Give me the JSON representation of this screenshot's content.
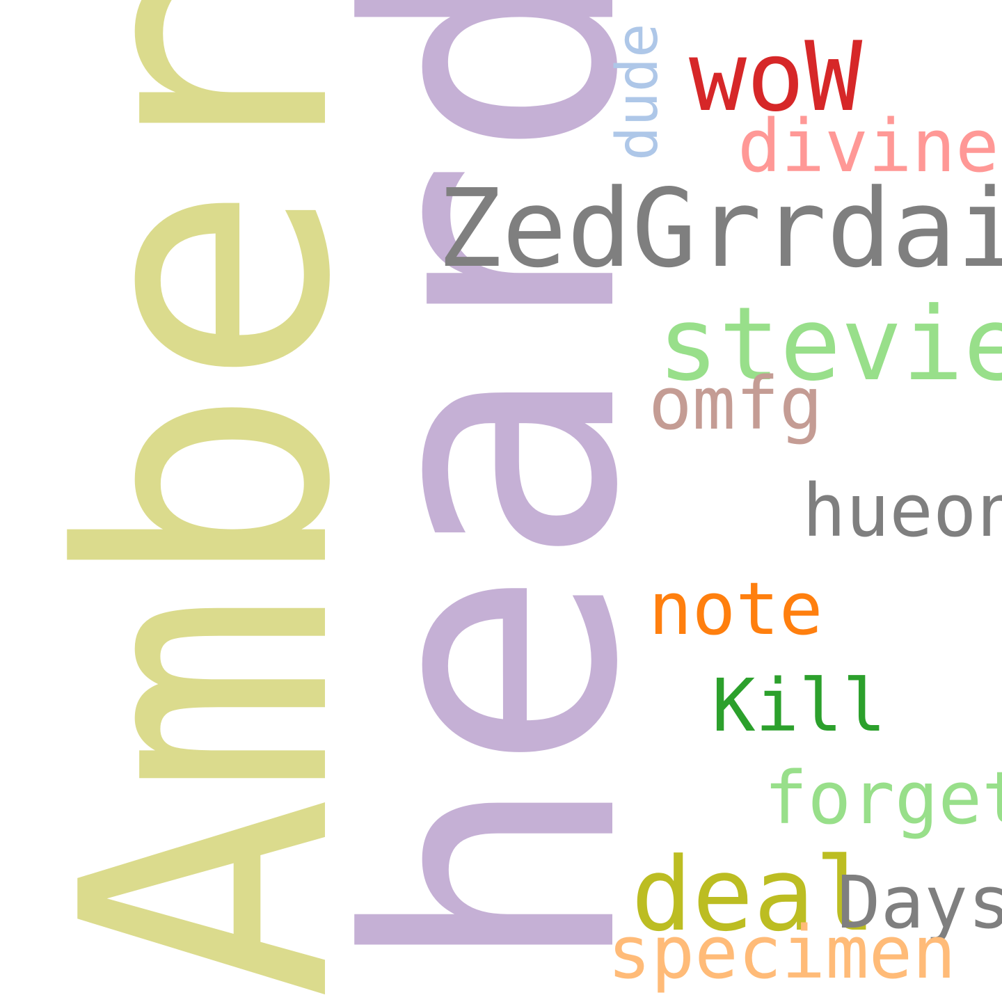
{
  "words": {
    "amber": {
      "text": "Amber",
      "color": "#dbdb8d",
      "orientation": "vertical"
    },
    "heard": {
      "text": "heard",
      "color": "#c5b0d5",
      "orientation": "vertical"
    },
    "dude": {
      "text": "dude",
      "color": "#aec7e8",
      "orientation": "vertical"
    },
    "wow": {
      "text": "woW",
      "color": "#d62728",
      "orientation": "horizontal"
    },
    "divine": {
      "text": "divine",
      "color": "#ff9896",
      "orientation": "horizontal"
    },
    "zedgrr": {
      "text": "ZedGrrdaisy",
      "color": "#7f7f7f",
      "orientation": "horizontal"
    },
    "stevie": {
      "text": "stevie",
      "color": "#98df8a",
      "orientation": "horizontal"
    },
    "omfg": {
      "text": "omfg",
      "color": "#c49c94",
      "orientation": "horizontal"
    },
    "hueon": {
      "text": "hueon",
      "color": "#7f7f7f",
      "orientation": "horizontal"
    },
    "note": {
      "text": "note",
      "color": "#ff7f0e",
      "orientation": "horizontal"
    },
    "kill": {
      "text": "Kill",
      "color": "#2ca02c",
      "orientation": "horizontal"
    },
    "forget": {
      "text": "forget",
      "color": "#98df8a",
      "orientation": "horizontal"
    },
    "deal": {
      "text": "deal",
      "color": "#bcbd22",
      "orientation": "horizontal"
    },
    "days": {
      "text": "Days",
      "color": "#7f7f7f",
      "orientation": "horizontal"
    },
    "specimen": {
      "text": "specimen",
      "color": "#ffbb78",
      "orientation": "horizontal"
    }
  }
}
